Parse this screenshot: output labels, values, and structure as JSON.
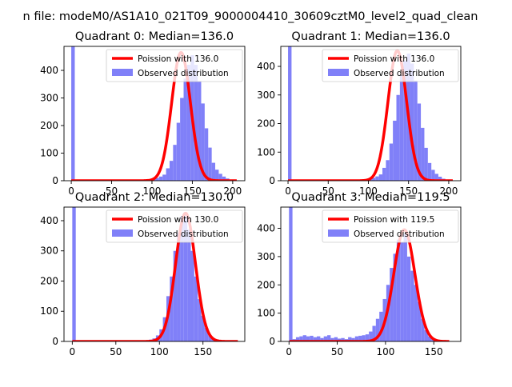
{
  "figure": {
    "suptitle": "n file: modeM0/AS1A10_021T09_9000004410_30609cztM0_level2_quad_clean"
  },
  "colors": {
    "hist_fill": "#8080f8",
    "poisson_line": "#ff0000",
    "axis": "#000000",
    "background": "#ffffff"
  },
  "chart_data": [
    {
      "type": "bar",
      "title": "Quadrant 0: Median=136.0",
      "xlabel": "",
      "ylabel": "",
      "xlim": [
        -9,
        215
      ],
      "ylim": [
        0,
        487
      ],
      "xticks": [
        0,
        50,
        100,
        150,
        200
      ],
      "yticks": [
        0,
        100,
        200,
        300,
        400
      ],
      "bin_start": 0,
      "bin_width": 4.35,
      "zero_spike": 500,
      "hist_values": [
        500,
        0,
        0,
        0,
        0,
        0,
        0,
        0,
        0,
        0,
        0,
        0,
        0,
        0,
        0,
        0,
        0,
        0,
        0,
        0,
        0,
        0,
        3,
        6,
        10,
        15,
        22,
        45,
        72,
        130,
        210,
        300,
        370,
        420,
        455,
        420,
        360,
        280,
        190,
        120,
        65,
        40,
        25,
        15,
        8,
        3,
        1
      ],
      "poisson_mean": 136.0,
      "poisson_peak": 465,
      "poisson_sigma": 11.66,
      "poisson_xmax": 205,
      "legend": [
        "Poission with 136.0",
        "Observed distribution"
      ],
      "legend_loc": "upper right"
    },
    {
      "type": "bar",
      "title": "Quadrant 1: Median=136.0",
      "xlabel": "",
      "ylabel": "",
      "xlim": [
        -9,
        215
      ],
      "ylim": [
        0,
        470
      ],
      "xticks": [
        0,
        50,
        100,
        150,
        200
      ],
      "yticks": [
        0,
        100,
        200,
        300,
        400
      ],
      "bin_start": 0,
      "bin_width": 4.35,
      "zero_spike": 500,
      "hist_values": [
        500,
        0,
        0,
        0,
        0,
        0,
        0,
        0,
        0,
        0,
        0,
        0,
        0,
        0,
        0,
        0,
        0,
        0,
        0,
        0,
        0,
        0,
        3,
        6,
        10,
        15,
        22,
        45,
        72,
        130,
        210,
        300,
        370,
        420,
        445,
        410,
        350,
        270,
        185,
        115,
        62,
        38,
        24,
        14,
        7,
        3,
        1
      ],
      "poisson_mean": 136.0,
      "poisson_peak": 455,
      "poisson_sigma": 11.66,
      "poisson_xmax": 205,
      "legend": [
        "Poission with 136.0",
        "Observed distribution"
      ],
      "legend_loc": "upper right"
    },
    {
      "type": "bar",
      "title": "Quadrant 2: Median=130.0",
      "xlabel": "",
      "ylabel": "",
      "xlim": [
        -9.5,
        198
      ],
      "ylim": [
        0,
        445
      ],
      "xticks": [
        0,
        50,
        100,
        150
      ],
      "yticks": [
        0,
        100,
        200,
        300,
        400
      ],
      "bin_start": 0,
      "bin_width": 4.0,
      "zero_spike": 500,
      "hist_values": [
        500,
        0,
        0,
        0,
        0,
        0,
        0,
        0,
        0,
        0,
        0,
        0,
        0,
        0,
        0,
        0,
        0,
        0,
        0,
        0,
        2,
        3,
        6,
        10,
        20,
        40,
        80,
        150,
        215,
        300,
        360,
        415,
        420,
        370,
        300,
        215,
        140,
        85,
        45,
        20,
        8,
        3,
        1,
        0,
        0,
        0,
        0,
        0
      ],
      "poisson_mean": 130.0,
      "poisson_peak": 425,
      "poisson_sigma": 11.4,
      "poisson_xmax": 190,
      "legend": [
        "Poission with 130.0",
        "Observed distribution"
      ],
      "legend_loc": "upper right"
    },
    {
      "type": "bar",
      "title": "Quadrant 3: Median=119.5",
      "xlabel": "",
      "ylabel": "",
      "xlim": [
        -8.5,
        178
      ],
      "ylim": [
        0,
        475
      ],
      "xticks": [
        0,
        50,
        100,
        150
      ],
      "yticks": [
        0,
        100,
        200,
        300,
        400
      ],
      "bin_start": 0,
      "bin_width": 3.6,
      "zero_spike": 500,
      "hist_values": [
        500,
        8,
        15,
        18,
        22,
        18,
        20,
        15,
        18,
        12,
        18,
        22,
        12,
        15,
        10,
        12,
        8,
        15,
        12,
        18,
        20,
        22,
        25,
        35,
        55,
        80,
        105,
        150,
        200,
        260,
        310,
        360,
        350,
        380,
        300,
        250,
        200,
        140,
        80,
        40,
        18,
        10,
        5,
        3,
        1,
        0,
        0
      ],
      "poisson_mean": 119.5,
      "poisson_peak": 395,
      "poisson_sigma": 10.93,
      "poisson_xmax": 166,
      "legend": [
        "Poission with 119.5",
        "Observed distribution"
      ],
      "legend_loc": "upper right"
    }
  ]
}
